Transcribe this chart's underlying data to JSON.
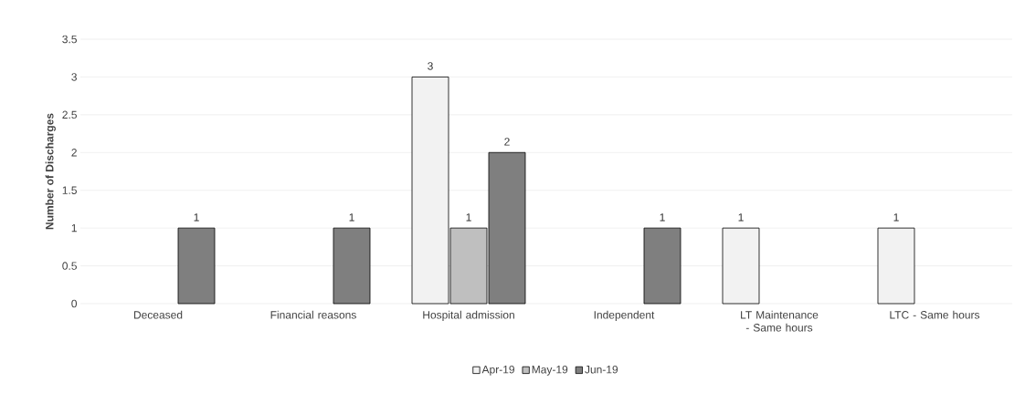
{
  "chart_data": {
    "type": "bar",
    "ylabel": "Number of Discharges",
    "categories": [
      "Deceased",
      "Financial reasons",
      "Hospital admission",
      "Independent",
      "LT Maintenance - Same hours",
      "LTC - Same hours"
    ],
    "series": [
      {
        "name": "Apr-19",
        "color": "#f2f2f2",
        "values": [
          null,
          null,
          3,
          null,
          1,
          1
        ]
      },
      {
        "name": "May-19",
        "color": "#bfbfbf",
        "values": [
          null,
          null,
          1,
          null,
          null,
          null
        ]
      },
      {
        "name": "Jun-19",
        "color": "#7f7f7f",
        "values": [
          1,
          1,
          2,
          1,
          null,
          null
        ]
      }
    ],
    "ylim": [
      0,
      3.5
    ],
    "yticks": [
      0,
      0.5,
      1,
      1.5,
      2,
      2.5,
      3,
      3.5
    ],
    "grid": "y",
    "legend": "bottom",
    "data_labels": true
  }
}
